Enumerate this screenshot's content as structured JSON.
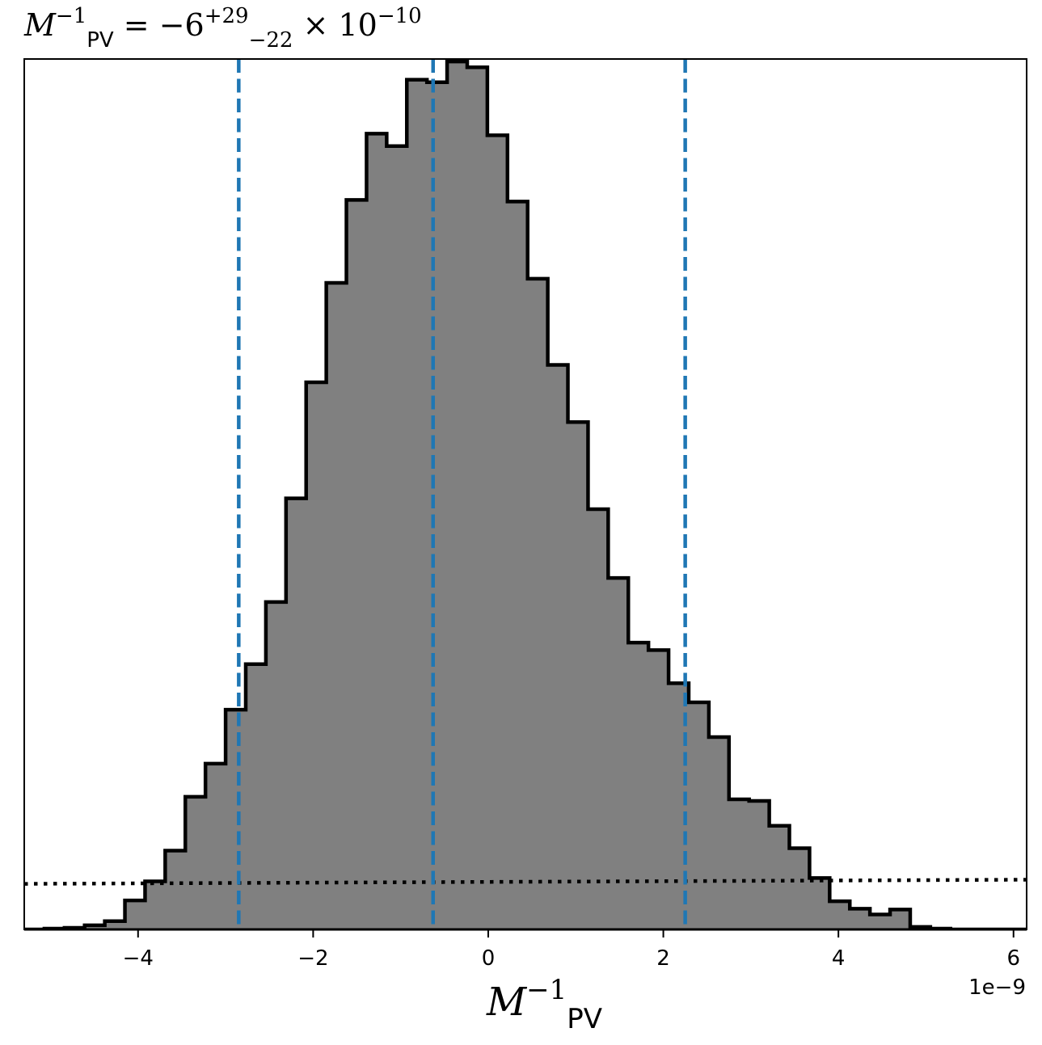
{
  "chart_data": {
    "type": "bar",
    "subtype": "step-histogram",
    "title": {
      "symbol": "M",
      "sup": "−1",
      "sub": "PV",
      "eq": " = −6",
      "err_plus": "+29",
      "err_minus": "−22",
      "times": " × 10",
      "exp": "−10"
    },
    "xlabel": {
      "symbol": "M",
      "sup": "−1",
      "sub": "PV"
    },
    "ylabel": "",
    "offset_text": "1e−9",
    "xlim": [
      -5.3,
      6.15
    ],
    "ylim": [
      0,
      1.05
    ],
    "xticks": [
      -4,
      -2,
      0,
      2,
      4,
      6
    ],
    "xtick_labels": [
      "−4",
      "−2",
      "0",
      "2",
      "4",
      "6"
    ],
    "yticks_visible": false,
    "grid": false,
    "legend": "none",
    "colors": {
      "fill": "#808080",
      "edge": "#000000",
      "quantile_line": "#1f77b4",
      "prior_line": "#000000",
      "axes": "#000000"
    },
    "bins": {
      "edges": [
        -5.3,
        -5.07,
        -4.84,
        -4.61,
        -4.38,
        -4.15,
        -3.92,
        -3.69,
        -3.46,
        -3.23,
        -3.0,
        -2.77,
        -2.54,
        -2.31,
        -2.08,
        -1.85,
        -1.62,
        -1.39,
        -1.16,
        -0.93,
        -0.7,
        -0.47,
        -0.24,
        -0.01,
        0.22,
        0.45,
        0.68,
        0.91,
        1.14,
        1.37,
        1.6,
        1.83,
        2.06,
        2.29,
        2.52,
        2.75,
        2.98,
        3.21,
        3.44,
        3.67,
        3.9,
        4.13,
        4.36,
        4.59,
        4.82,
        5.05,
        5.28,
        5.51,
        5.74,
        5.97,
        6.2
      ],
      "values": [
        0.0,
        0.001,
        0.002,
        0.005,
        0.01,
        0.035,
        0.058,
        0.095,
        0.16,
        0.2,
        0.265,
        0.32,
        0.395,
        0.52,
        0.66,
        0.78,
        0.88,
        0.96,
        0.945,
        1.025,
        1.022,
        1.047,
        1.04,
        0.958,
        0.878,
        0.785,
        0.681,
        0.612,
        0.507,
        0.424,
        0.346,
        0.337,
        0.297,
        0.274,
        0.232,
        0.157,
        0.155,
        0.125,
        0.098,
        0.062,
        0.034,
        0.025,
        0.018,
        0.024,
        0.003,
        0.001,
        0.0,
        0.0,
        0.0,
        0.0
      ]
    },
    "quantile_lines": [
      -2.85,
      -0.63,
      2.25
    ],
    "prior_line": {
      "y_start": 0.055,
      "y_end": 0.06
    }
  }
}
